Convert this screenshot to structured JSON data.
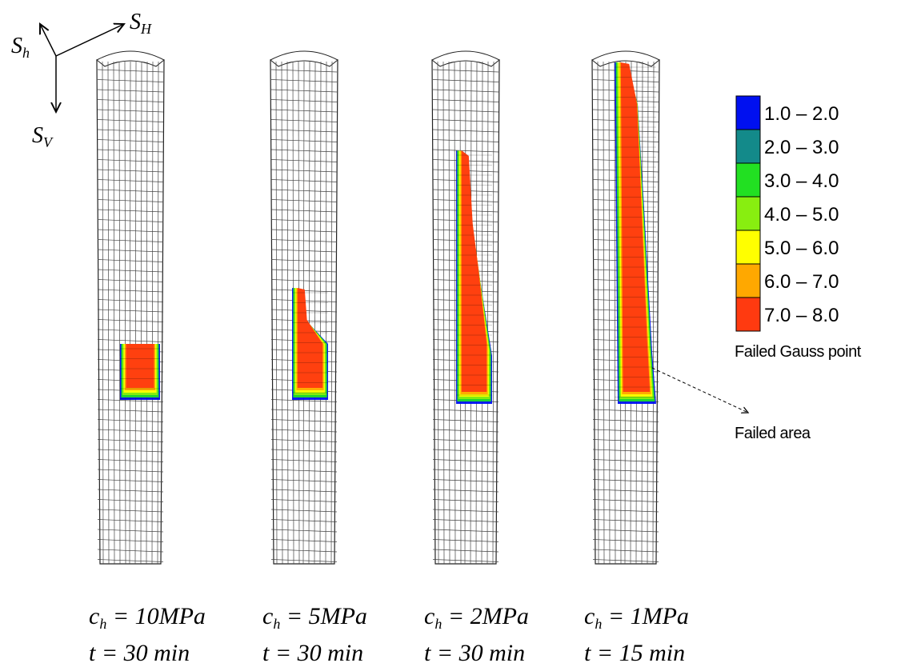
{
  "axes": {
    "sh": {
      "symbol": "S",
      "sub": "h"
    },
    "sH": {
      "symbol": "S",
      "sub": "H"
    },
    "sv": {
      "symbol": "S",
      "sub": "V"
    }
  },
  "legend": {
    "items": [
      {
        "label": "1.0 – 2.0",
        "color": "#0010f0"
      },
      {
        "label": "2.0 – 3.0",
        "color": "#138a8a"
      },
      {
        "label": "3.0 – 4.0",
        "color": "#22e022"
      },
      {
        "label": "4.0 – 5.0",
        "color": "#88ee10"
      },
      {
        "label": "5.0 – 6.0",
        "color": "#ffff00"
      },
      {
        "label": "6.0 – 7.0",
        "color": "#ffa800"
      },
      {
        "label": "7.0 – 8.0",
        "color": "#ff3a10"
      }
    ],
    "title": "Failed Gauss point"
  },
  "annotation": "Failed area",
  "panels": [
    {
      "var": "c",
      "sub": "h",
      "rest": " = 10MPa",
      "time": "t = 30 min"
    },
    {
      "var": "c",
      "sub": "h",
      "rest": " = 5MPa",
      "time": "t = 30 min"
    },
    {
      "var": "c",
      "sub": "h",
      "rest": " = 2MPa",
      "time": "t = 30 min"
    },
    {
      "var": "c",
      "sub": "h",
      "rest": " = 1MPa",
      "time": "t = 15 min"
    }
  ]
}
